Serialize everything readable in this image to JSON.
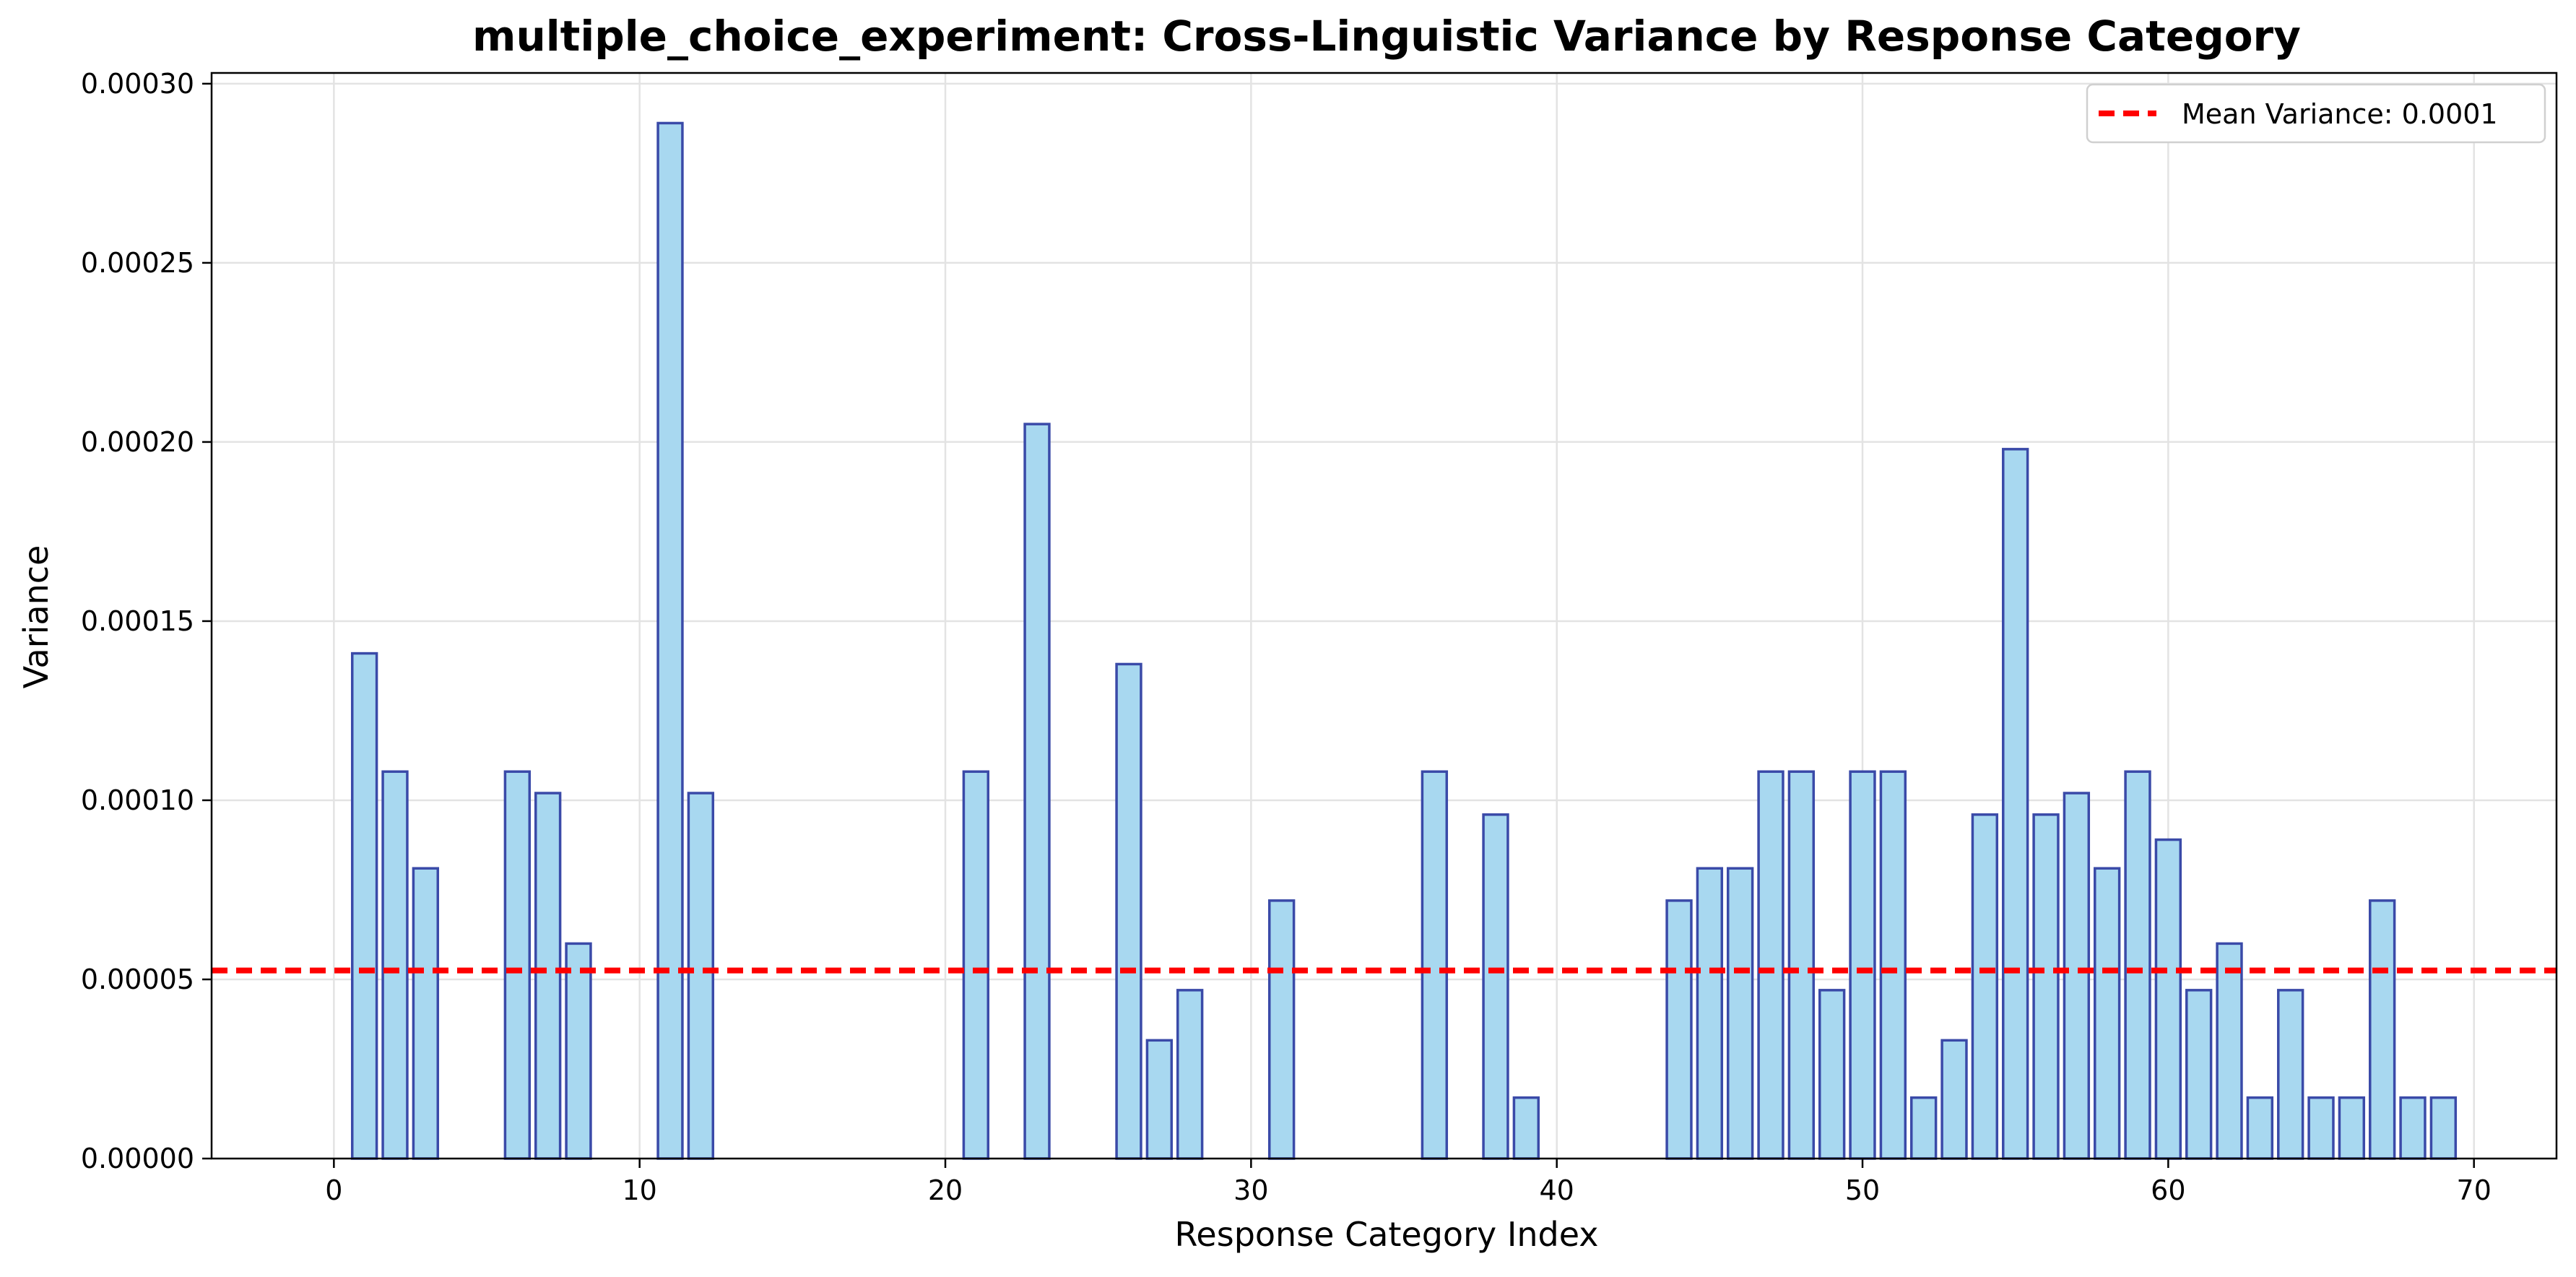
{
  "chart_data": {
    "type": "bar",
    "title": "multiple_choice_experiment: Cross-Linguistic Variance by Response Category",
    "xlabel": "Response Category Index",
    "ylabel": "Variance",
    "xlim": [
      -4,
      72.7
    ],
    "ylim": [
      0,
      0.000303
    ],
    "x_ticks": [
      0,
      10,
      20,
      30,
      40,
      50,
      60,
      70
    ],
    "y_ticks": [
      0.0,
      5e-05,
      0.0001,
      0.00015,
      0.0002,
      0.00025,
      0.0003
    ],
    "y_tick_labels": [
      "0.00000",
      "0.00005",
      "0.00010",
      "0.00015",
      "0.00020",
      "0.00025",
      "0.00030"
    ],
    "grid": true,
    "legend_position": "top-right",
    "bar_color": "#a8d8f0",
    "bar_edge_color": "#3a4aa8",
    "mean_line_color": "#ff0000",
    "x": [
      0,
      1,
      2,
      3,
      4,
      5,
      6,
      7,
      8,
      9,
      10,
      11,
      12,
      13,
      14,
      15,
      16,
      17,
      18,
      19,
      20,
      21,
      22,
      23,
      24,
      25,
      26,
      27,
      28,
      29,
      30,
      31,
      32,
      33,
      34,
      35,
      36,
      37,
      38,
      39,
      40,
      41,
      42,
      43,
      44,
      45,
      46,
      47,
      48,
      49,
      50,
      51,
      52,
      53,
      54,
      55,
      56,
      57,
      58,
      59,
      60,
      61,
      62,
      63,
      64,
      65,
      66,
      67,
      68,
      69
    ],
    "values": [
      0,
      0.000141,
      0.000108,
      8.1e-05,
      0,
      0,
      0.000108,
      0.000102,
      6e-05,
      0,
      0,
      0.000289,
      0.000102,
      0,
      0,
      0,
      0,
      0,
      0,
      0,
      0,
      0.000108,
      0,
      0.000205,
      0,
      0,
      0.000138,
      3.3e-05,
      4.7e-05,
      0,
      0,
      7.2e-05,
      0,
      0,
      0,
      0,
      0.000108,
      0,
      9.6e-05,
      1.7e-05,
      0,
      0,
      0,
      0,
      7.2e-05,
      8.1e-05,
      8.1e-05,
      0.000108,
      0.000108,
      4.7e-05,
      0.000108,
      0.000108,
      1.7e-05,
      3.3e-05,
      9.6e-05,
      0.000198,
      9.6e-05,
      0.000102,
      8.1e-05,
      0.000108,
      8.9e-05,
      4.7e-05,
      6e-05,
      1.7e-05,
      4.7e-05,
      1.7e-05,
      1.7e-05,
      7.2e-05,
      1.7e-05,
      1.7e-05
    ],
    "mean_value": 5.25e-05,
    "legend_label": "Mean Variance: 0.0001"
  }
}
